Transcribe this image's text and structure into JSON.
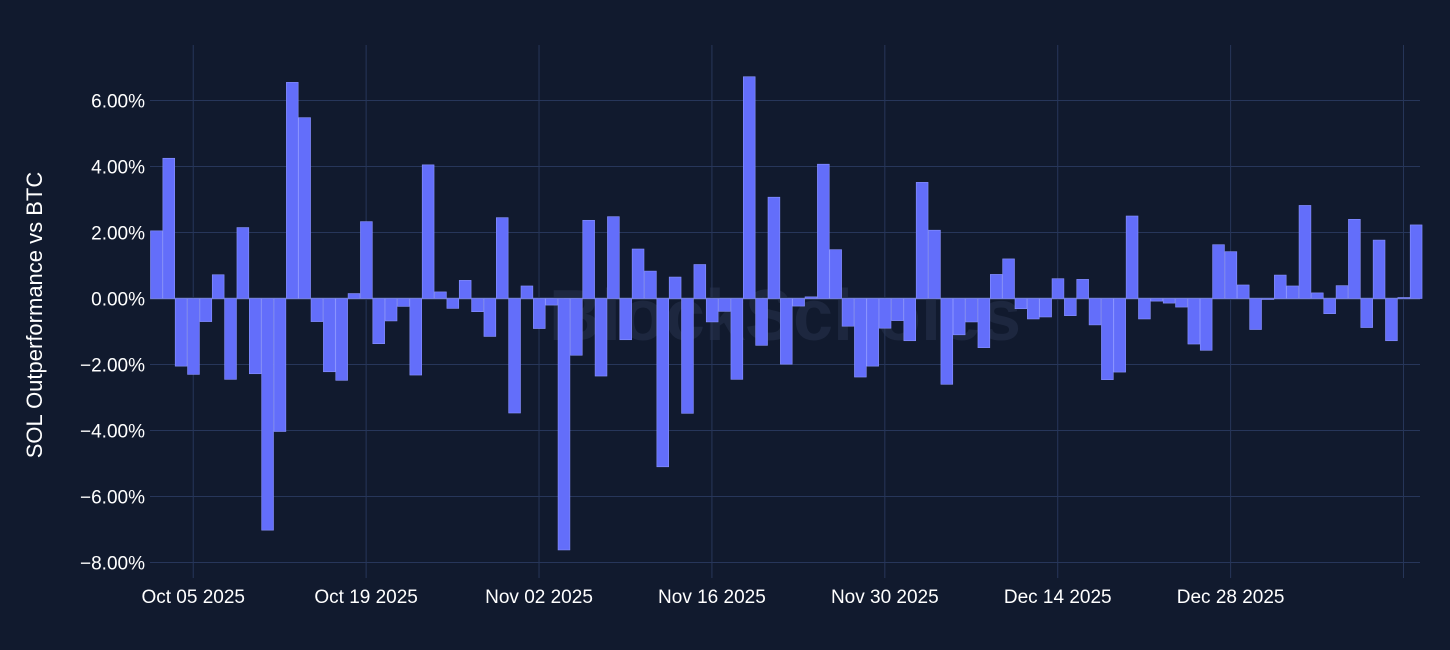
{
  "colors": {
    "background": "#111a2e",
    "grid": "#27365a",
    "zeroline": "#3a4a70",
    "bar_fill": "#636efa",
    "bar_stroke": "#8a93ff",
    "text": "#ffffff",
    "watermark": "#2a3550"
  },
  "watermark": "BlockScholes",
  "chart_data": {
    "type": "bar",
    "title": "",
    "xlabel": "",
    "ylabel": "SOL Outperformance vs BTC",
    "x_start": "2025-10-02",
    "ylim": [
      -8.4,
      7.2
    ],
    "grid": true,
    "y_ticks": [
      {
        "value": 6,
        "label": "6.00%"
      },
      {
        "value": 4,
        "label": "4.00%"
      },
      {
        "value": 2,
        "label": "2.00%"
      },
      {
        "value": 0,
        "label": "0.00%"
      },
      {
        "value": -2,
        "label": "−2.00%"
      },
      {
        "value": -4,
        "label": "−4.00%"
      },
      {
        "value": -6,
        "label": "−6.00%"
      },
      {
        "value": -8,
        "label": "−8.00%"
      }
    ],
    "x_ticks": [
      {
        "date": "2025-10-05",
        "label": "Oct 05 2025"
      },
      {
        "date": "2025-10-19",
        "label": "Oct 19 2025"
      },
      {
        "date": "2025-11-02",
        "label": "Nov 02 2025"
      },
      {
        "date": "2025-11-16",
        "label": "Nov 16 2025"
      },
      {
        "date": "2025-11-30",
        "label": "Nov 30 2025"
      },
      {
        "date": "2025-12-14",
        "label": "Dec 14 2025"
      },
      {
        "date": "2025-12-28",
        "label": "Dec 28 2025"
      },
      {
        "date": "2026-01-11",
        "label": ""
      }
    ],
    "values": [
      2.05,
      4.25,
      -2.05,
      -2.3,
      -0.7,
      0.72,
      -2.45,
      2.15,
      -2.28,
      -7.02,
      -4.03,
      6.55,
      5.48,
      -0.7,
      -2.22,
      -2.48,
      0.15,
      2.33,
      -1.37,
      -0.68,
      -0.24,
      -2.32,
      4.05,
      0.2,
      -0.3,
      0.55,
      -0.4,
      -1.15,
      2.45,
      -3.47,
      0.38,
      -0.91,
      -0.2,
      -7.62,
      -1.72,
      2.37,
      -2.35,
      2.48,
      -1.25,
      1.5,
      0.83,
      -5.1,
      0.65,
      -3.48,
      1.03,
      -0.71,
      -0.39,
      -2.45,
      6.72,
      -1.42,
      3.07,
      -1.99,
      -0.23,
      0.05,
      4.07,
      1.48,
      -0.84,
      -2.38,
      -2.05,
      -0.9,
      -0.67,
      -1.28,
      3.52,
      2.07,
      -2.6,
      -1.1,
      -0.71,
      -1.49,
      0.73,
      1.2,
      -0.31,
      -0.62,
      -0.56,
      0.6,
      -0.52,
      0.58,
      -0.8,
      -2.46,
      -2.23,
      2.5,
      -0.62,
      -0.08,
      -0.14,
      -0.26,
      -1.38,
      -1.57,
      1.63,
      1.42,
      0.41,
      -0.94,
      -0.03,
      0.71,
      0.38,
      2.82,
      0.17,
      -0.46,
      0.39,
      2.4,
      -0.88,
      1.77,
      -1.28,
      0.03,
      2.23
    ]
  }
}
